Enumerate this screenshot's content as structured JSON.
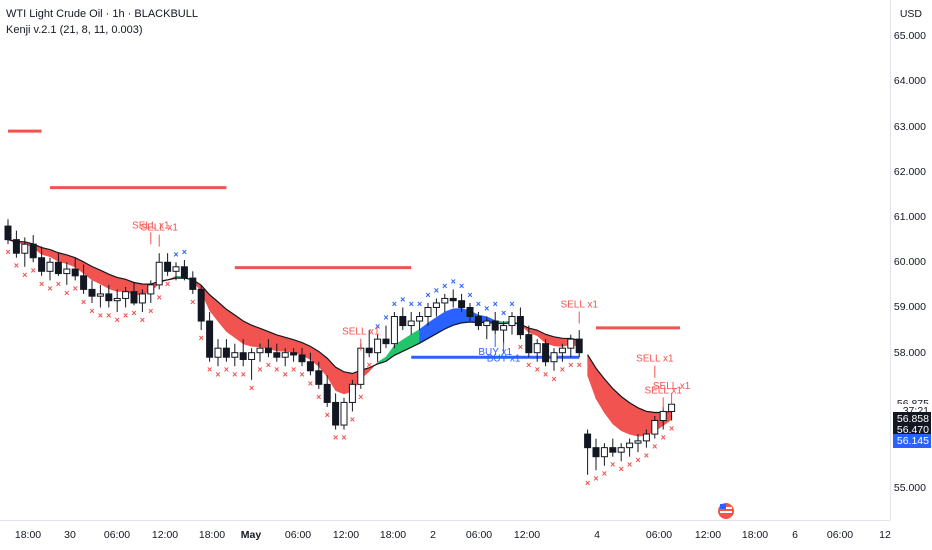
{
  "legend": {
    "title": "WTI Light Crude Oil · 1h · BLACKBULL",
    "indicator": "Kenji v.2.1 (21, 8, 11, 0.003)"
  },
  "axis": {
    "currency": "USD",
    "ticks": [
      {
        "label": "65.000",
        "value": 65.0
      },
      {
        "label": "64.000",
        "value": 64.0
      },
      {
        "label": "63.000",
        "value": 63.0
      },
      {
        "label": "62.000",
        "value": 62.0
      },
      {
        "label": "61.000",
        "value": 61.0
      },
      {
        "label": "60.000",
        "value": 60.0
      },
      {
        "label": "59.000",
        "value": 59.0
      },
      {
        "label": "58.000",
        "value": 58.0
      },
      {
        "label": "55.000",
        "value": 55.0
      }
    ],
    "badges": [
      {
        "label": "56.875",
        "value": 56.875,
        "bg": "#ffffff",
        "color": "#131722"
      },
      {
        "label": "37:21",
        "value": 56.72,
        "bg": "#ffffff",
        "color": "#131722"
      },
      {
        "label": "56.858",
        "value": 56.53,
        "bg": "#131722",
        "color": "#ffffff"
      },
      {
        "label": "56.470",
        "value": 56.3,
        "bg": "#131722",
        "color": "#ffffff"
      },
      {
        "label": "56.145",
        "value": 56.05,
        "bg": "#2962ff",
        "color": "#ffffff"
      }
    ]
  },
  "time_axis": [
    {
      "label": "18:00",
      "bold": false
    },
    {
      "label": "30",
      "bold": false
    },
    {
      "label": "06:00",
      "bold": false
    },
    {
      "label": "12:00",
      "bold": false
    },
    {
      "label": "18:00",
      "bold": false
    },
    {
      "label": "May",
      "bold": true
    },
    {
      "label": "06:00",
      "bold": false
    },
    {
      "label": "12:00",
      "bold": false
    },
    {
      "label": "18:00",
      "bold": false
    },
    {
      "label": "2",
      "bold": false
    },
    {
      "label": "06:00",
      "bold": false
    },
    {
      "label": "12:00",
      "bold": false
    },
    {
      "label": "4",
      "bold": false
    },
    {
      "label": "06:00",
      "bold": false
    },
    {
      "label": "12:00",
      "bold": false
    },
    {
      "label": "18:00",
      "bold": false
    },
    {
      "label": "6",
      "bold": false
    },
    {
      "label": "06:00",
      "bold": false
    },
    {
      "label": "12",
      "bold": false
    }
  ],
  "colors": {
    "up": "#ffffff",
    "down": "#131722",
    "bear_cloud": "#f05350",
    "bull_cloud": "#22c56b",
    "blue_cloud": "#2962ff",
    "sell": "#f05350",
    "buy": "#2962ff",
    "level_red": "#f05350",
    "level_blue": "#2962ff"
  },
  "chart_data": {
    "type": "candlestick",
    "symbol": "WTI Light Crude Oil",
    "interval": "1h",
    "ylim": [
      54.3,
      65.8
    ],
    "candles": [
      [
        60.8,
        60.95,
        60.4,
        60.5
      ],
      [
        60.5,
        60.7,
        60.1,
        60.2
      ],
      [
        60.2,
        60.55,
        59.9,
        60.4
      ],
      [
        60.4,
        60.6,
        60.0,
        60.1
      ],
      [
        60.1,
        60.35,
        59.7,
        59.8
      ],
      [
        59.8,
        60.1,
        59.6,
        60.0
      ],
      [
        60.0,
        60.2,
        59.7,
        59.75
      ],
      [
        59.75,
        60.0,
        59.5,
        59.85
      ],
      [
        59.85,
        60.1,
        59.6,
        59.7
      ],
      [
        59.7,
        59.95,
        59.3,
        59.4
      ],
      [
        59.4,
        59.6,
        59.1,
        59.25
      ],
      [
        59.25,
        59.5,
        59.0,
        59.3
      ],
      [
        59.3,
        59.5,
        59.0,
        59.15
      ],
      [
        59.15,
        59.4,
        58.9,
        59.2
      ],
      [
        59.2,
        59.45,
        59.0,
        59.35
      ],
      [
        59.35,
        59.55,
        59.05,
        59.1
      ],
      [
        59.1,
        59.4,
        58.9,
        59.3
      ],
      [
        59.3,
        59.6,
        59.1,
        59.5
      ],
      [
        59.5,
        60.2,
        59.4,
        60.0
      ],
      [
        60.0,
        60.2,
        59.7,
        59.8
      ],
      [
        59.8,
        60.0,
        59.6,
        59.9
      ],
      [
        59.9,
        60.05,
        59.6,
        59.65
      ],
      [
        59.65,
        59.8,
        59.3,
        59.4
      ],
      [
        59.4,
        59.5,
        58.5,
        58.7
      ],
      [
        58.7,
        58.9,
        57.8,
        57.9
      ],
      [
        57.9,
        58.3,
        57.7,
        58.1
      ],
      [
        58.1,
        58.3,
        57.8,
        57.9
      ],
      [
        57.9,
        58.2,
        57.7,
        58.0
      ],
      [
        58.0,
        58.3,
        57.7,
        57.85
      ],
      [
        57.85,
        58.1,
        57.4,
        58.0
      ],
      [
        58.0,
        58.2,
        57.8,
        58.1
      ],
      [
        58.1,
        58.3,
        57.9,
        58.0
      ],
      [
        58.0,
        58.2,
        57.8,
        57.9
      ],
      [
        57.9,
        58.1,
        57.7,
        58.0
      ],
      [
        58.0,
        58.1,
        57.8,
        57.95
      ],
      [
        57.95,
        58.1,
        57.7,
        57.8
      ],
      [
        57.8,
        58.0,
        57.5,
        57.6
      ],
      [
        57.6,
        57.8,
        57.2,
        57.3
      ],
      [
        57.3,
        57.5,
        56.8,
        56.9
      ],
      [
        56.9,
        57.1,
        56.3,
        56.4
      ],
      [
        56.4,
        57.0,
        56.3,
        56.9
      ],
      [
        56.9,
        57.4,
        56.7,
        57.3
      ],
      [
        57.3,
        58.2,
        57.2,
        58.1
      ],
      [
        58.1,
        58.5,
        57.9,
        58.0
      ],
      [
        58.0,
        58.4,
        57.8,
        58.3
      ],
      [
        58.3,
        58.6,
        58.1,
        58.2
      ],
      [
        58.2,
        58.9,
        58.1,
        58.8
      ],
      [
        58.8,
        59.0,
        58.5,
        58.6
      ],
      [
        58.6,
        58.9,
        58.4,
        58.7
      ],
      [
        58.7,
        58.9,
        58.5,
        58.8
      ],
      [
        58.8,
        59.1,
        58.6,
        59.0
      ],
      [
        59.0,
        59.2,
        58.8,
        59.1
      ],
      [
        59.1,
        59.3,
        58.9,
        59.2
      ],
      [
        59.2,
        59.4,
        59.0,
        59.15
      ],
      [
        59.15,
        59.3,
        58.9,
        59.0
      ],
      [
        59.0,
        59.1,
        58.7,
        58.8
      ],
      [
        58.8,
        58.9,
        58.5,
        58.6
      ],
      [
        58.6,
        58.8,
        58.3,
        58.7
      ],
      [
        58.7,
        58.9,
        58.4,
        58.5
      ],
      [
        58.5,
        58.7,
        58.2,
        58.6
      ],
      [
        58.6,
        58.9,
        58.4,
        58.8
      ],
      [
        58.8,
        59.0,
        58.3,
        58.4
      ],
      [
        58.4,
        58.6,
        57.9,
        58.0
      ],
      [
        58.0,
        58.3,
        57.8,
        58.2
      ],
      [
        58.2,
        58.3,
        57.7,
        57.8
      ],
      [
        57.8,
        58.1,
        57.6,
        58.0
      ],
      [
        58.0,
        58.2,
        57.8,
        58.1
      ],
      [
        58.1,
        58.4,
        57.9,
        58.3
      ],
      [
        58.3,
        58.5,
        57.9,
        58.0
      ],
      [
        56.2,
        56.3,
        55.3,
        55.9
      ],
      [
        55.9,
        56.1,
        55.4,
        55.7
      ],
      [
        55.7,
        56.0,
        55.5,
        55.9
      ],
      [
        55.9,
        56.1,
        55.7,
        55.8
      ],
      [
        55.8,
        56.0,
        55.6,
        55.9
      ],
      [
        55.9,
        56.1,
        55.7,
        56.0
      ],
      [
        56.0,
        56.2,
        55.8,
        56.05
      ],
      [
        56.05,
        56.3,
        55.9,
        56.2
      ],
      [
        56.2,
        56.6,
        56.1,
        56.5
      ],
      [
        56.5,
        56.8,
        56.3,
        56.7
      ],
      [
        56.7,
        56.9,
        56.5,
        56.86
      ]
    ],
    "levels": [
      {
        "color": "red",
        "value": 62.9
      },
      {
        "color": "red",
        "value": 61.65
      },
      {
        "color": "red",
        "value": 59.88
      },
      {
        "color": "red",
        "value": 58.55
      },
      {
        "color": "blue",
        "value": 57.9
      }
    ],
    "signals": [
      {
        "label": "SELL x1",
        "type": "sell",
        "candle": 17,
        "value": 60.75
      },
      {
        "label": "SELL x1",
        "type": "sell",
        "candle": 18,
        "value": 60.7
      },
      {
        "label": "SELL x1",
        "type": "sell",
        "candle": 42,
        "value": 58.4
      },
      {
        "label": "BUY x1",
        "type": "buy",
        "candle": 58,
        "value": 57.95
      },
      {
        "label": "BUY x1",
        "type": "buy",
        "candle": 59,
        "value": 57.8
      },
      {
        "label": "SELL x1",
        "type": "sell",
        "candle": 68,
        "value": 59.0
      },
      {
        "label": "SELL x1",
        "type": "sell",
        "candle": 77,
        "value": 57.8
      },
      {
        "label": "SELL x1",
        "type": "sell",
        "candle": 78,
        "value": 57.1
      },
      {
        "label": "SELL x1",
        "type": "sell",
        "candle": 79,
        "value": 57.2
      }
    ]
  }
}
